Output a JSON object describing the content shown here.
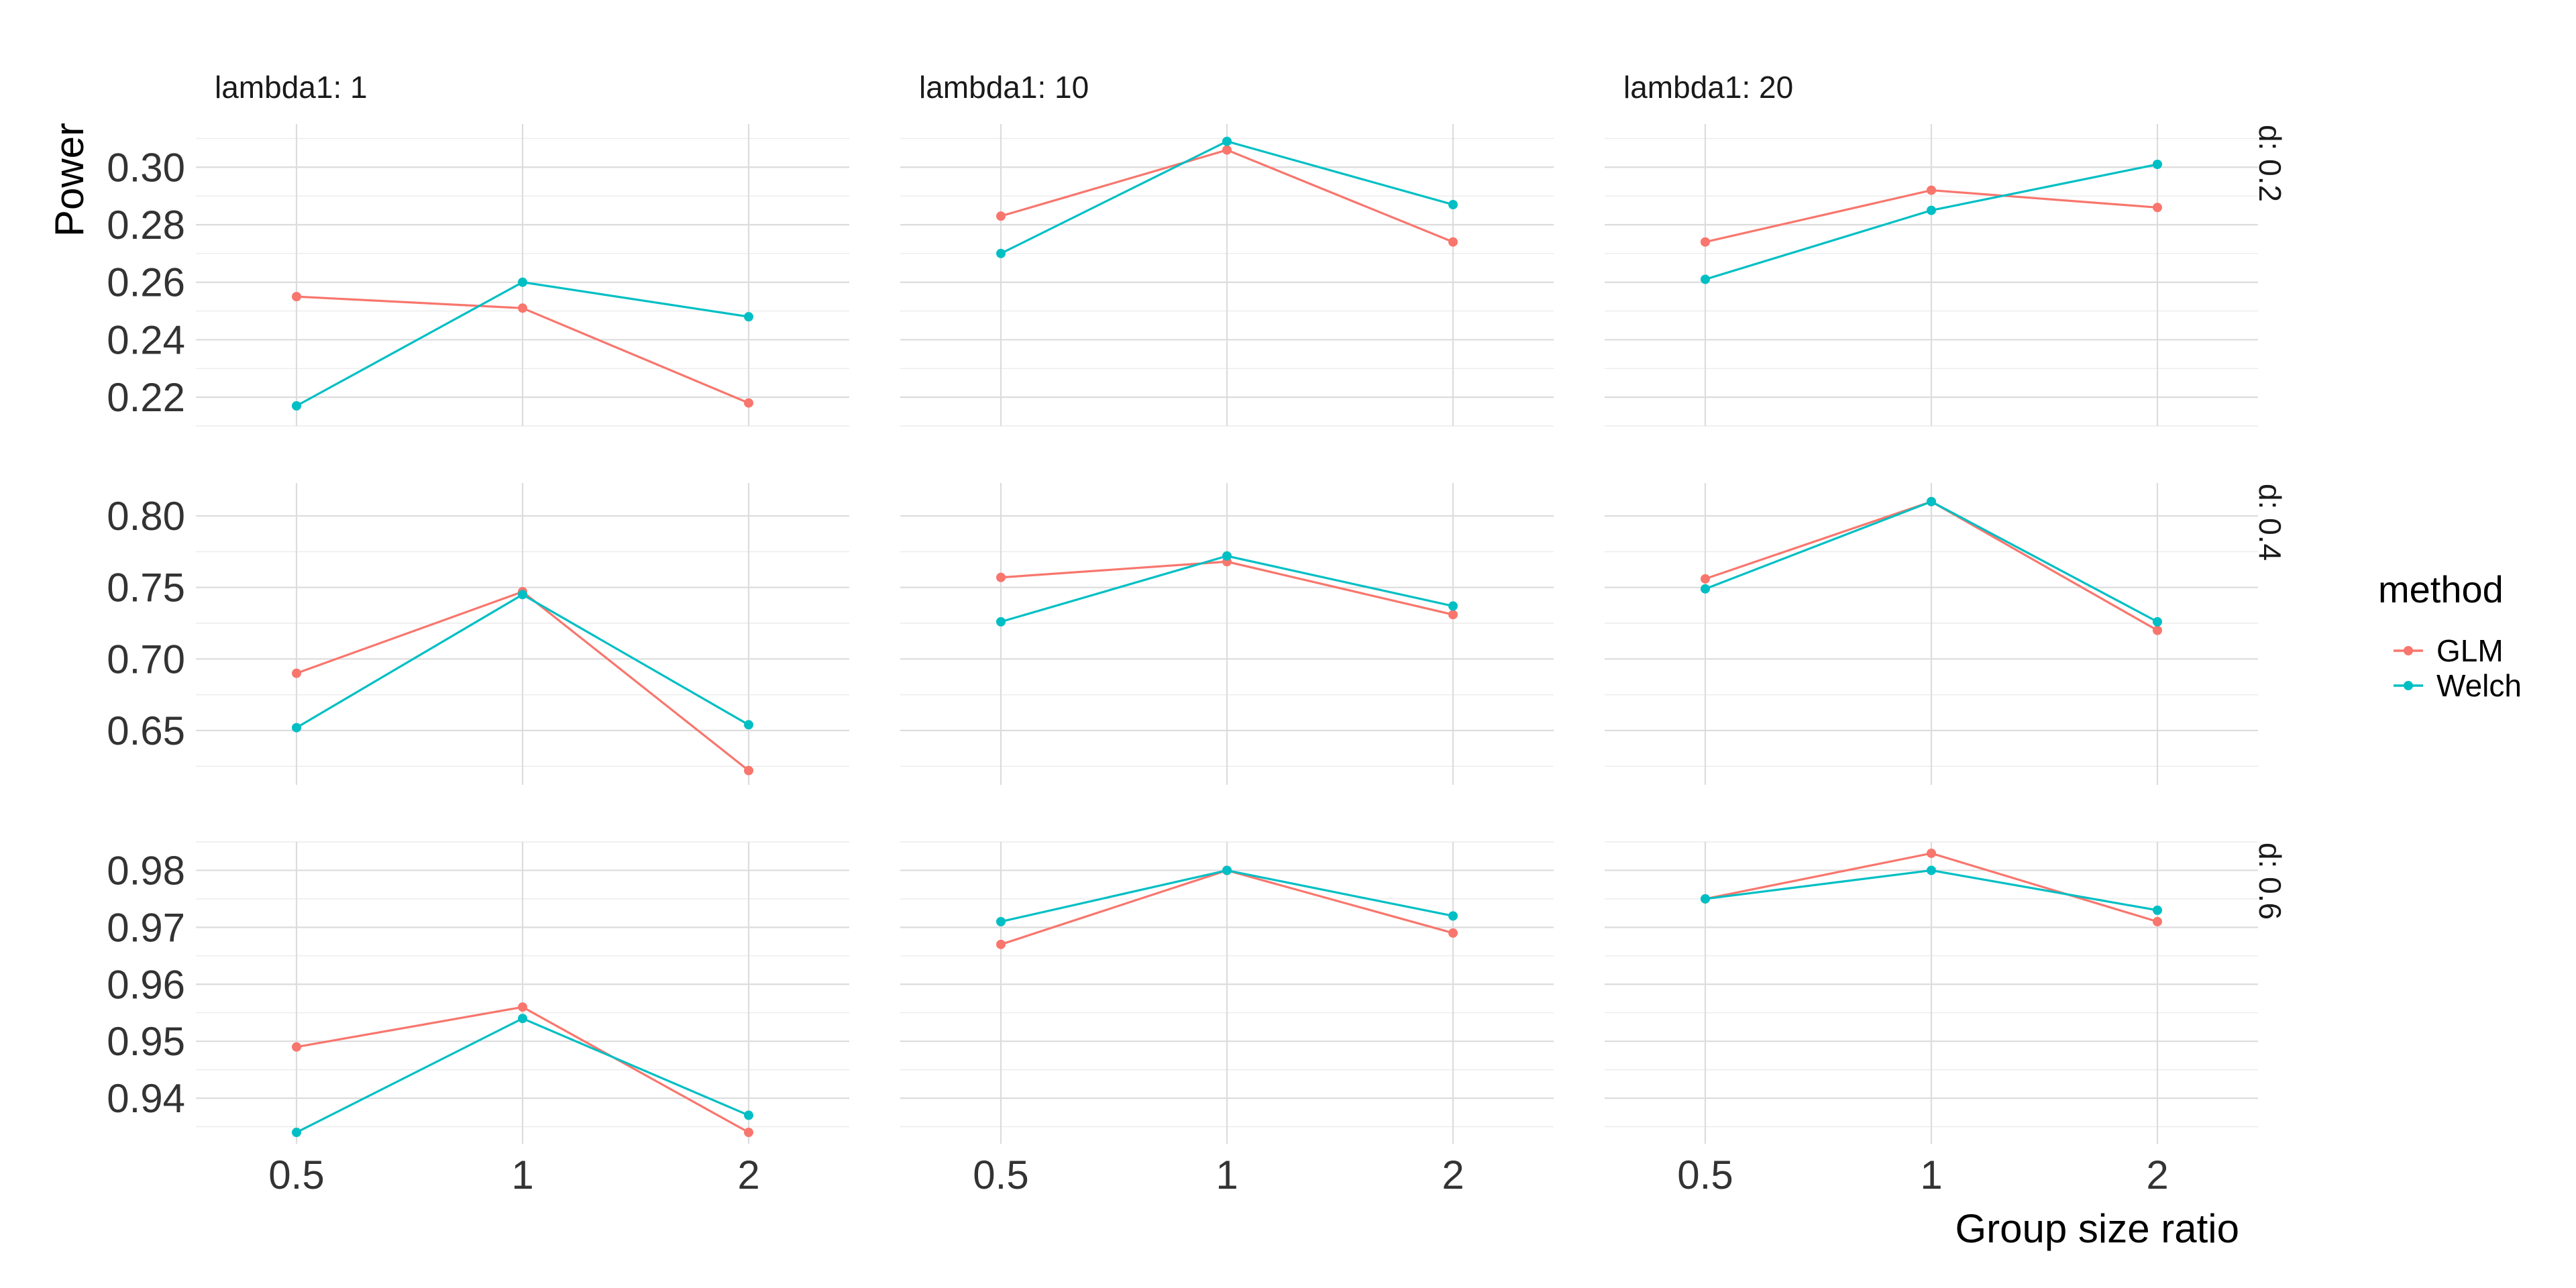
{
  "chart_data": {
    "type": "line",
    "xlabel": "Group size ratio",
    "ylabel": "Power",
    "x_categories": [
      "0.5",
      "1",
      "2"
    ],
    "col_facet_labels": [
      "lambda1: 1",
      "lambda1: 10",
      "lambda1: 20"
    ],
    "row_facet_labels": [
      "d: 0.2",
      "d: 0.4",
      "d: 0.6"
    ],
    "legend": {
      "title": "method",
      "placement": "right",
      "entries": [
        {
          "name": "GLM",
          "color": "#F8766D"
        },
        {
          "name": "Welch",
          "color": "#00BFC4"
        }
      ]
    },
    "grid": true,
    "rows": [
      {
        "ylim": [
          0.21,
          0.315
        ],
        "y_ticks": [
          "0.22",
          "0.24",
          "0.26",
          "0.28",
          "0.30"
        ],
        "panels": [
          {
            "GLM": [
              0.255,
              0.251,
              0.218
            ],
            "Welch": [
              0.217,
              0.26,
              0.248
            ]
          },
          {
            "GLM": [
              0.283,
              0.306,
              0.274
            ],
            "Welch": [
              0.27,
              0.309,
              0.287
            ]
          },
          {
            "GLM": [
              0.274,
              0.292,
              0.286
            ],
            "Welch": [
              0.261,
              0.285,
              0.301
            ]
          }
        ]
      },
      {
        "ylim": [
          0.612,
          0.823
        ],
        "y_ticks": [
          "0.65",
          "0.70",
          "0.75",
          "0.80"
        ],
        "panels": [
          {
            "GLM": [
              0.69,
              0.747,
              0.622
            ],
            "Welch": [
              0.652,
              0.745,
              0.654
            ]
          },
          {
            "GLM": [
              0.757,
              0.768,
              0.731
            ],
            "Welch": [
              0.726,
              0.772,
              0.737
            ]
          },
          {
            "GLM": [
              0.756,
              0.81,
              0.72
            ],
            "Welch": [
              0.749,
              0.81,
              0.726
            ]
          }
        ]
      },
      {
        "ylim": [
          0.932,
          0.985
        ],
        "y_ticks": [
          "0.94",
          "0.95",
          "0.96",
          "0.97",
          "0.98"
        ],
        "panels": [
          {
            "GLM": [
              0.949,
              0.956,
              0.934
            ],
            "Welch": [
              0.934,
              0.954,
              0.937
            ]
          },
          {
            "GLM": [
              0.967,
              0.98,
              0.969
            ],
            "Welch": [
              0.971,
              0.98,
              0.972
            ]
          },
          {
            "GLM": [
              0.975,
              0.983,
              0.971
            ],
            "Welch": [
              0.975,
              0.98,
              0.973
            ]
          }
        ]
      }
    ]
  }
}
